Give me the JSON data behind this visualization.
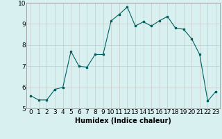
{
  "x": [
    0,
    1,
    2,
    3,
    4,
    5,
    6,
    7,
    8,
    9,
    10,
    11,
    12,
    13,
    14,
    15,
    16,
    17,
    18,
    19,
    20,
    21,
    22,
    23
  ],
  "y": [
    5.6,
    5.4,
    5.4,
    5.9,
    6.0,
    7.7,
    7.0,
    6.95,
    7.55,
    7.55,
    9.15,
    9.45,
    9.8,
    8.9,
    9.1,
    8.9,
    9.15,
    9.35,
    8.8,
    8.75,
    8.3,
    7.55,
    5.35,
    5.8
  ],
  "xlabel": "Humidex (Indice chaleur)",
  "xlim": [
    -0.5,
    23.5
  ],
  "ylim": [
    5.0,
    10.0
  ],
  "yticks": [
    5,
    6,
    7,
    8,
    9,
    10
  ],
  "xticks": [
    0,
    1,
    2,
    3,
    4,
    5,
    6,
    7,
    8,
    9,
    10,
    11,
    12,
    13,
    14,
    15,
    16,
    17,
    18,
    19,
    20,
    21,
    22,
    23
  ],
  "line_color": "#006060",
  "bg_color": "#d8f0f0",
  "grid_color": "#c8c8c8",
  "xlabel_fontsize": 7,
  "tick_fontsize": 6.5
}
